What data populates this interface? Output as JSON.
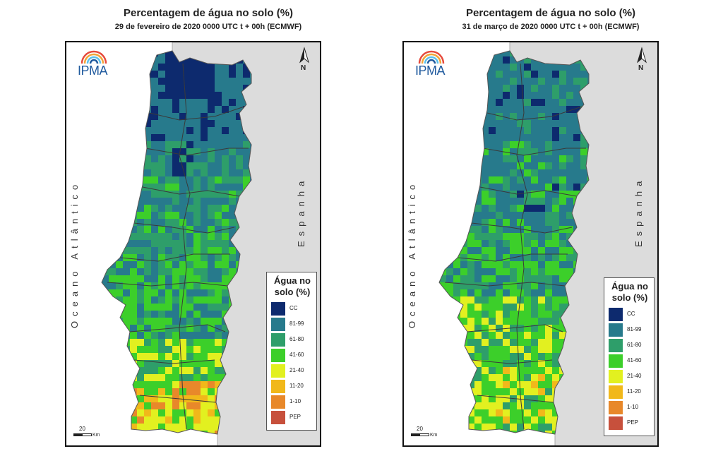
{
  "panels": [
    {
      "title": "Percentagem de água no solo (%)",
      "subtitle": "29 de fevereiro de 2020 0000 UTC t + 00h (ECMWF)",
      "logo_text": "IPMA",
      "north_label": "N",
      "ocean_label": "Oceano Atlântico",
      "spain_label": "Espanha",
      "legend_title": "Água no solo (%)",
      "scale_value": "20",
      "scale_unit": "Km"
    },
    {
      "title": "Percentagem de água no solo (%)",
      "subtitle": "31 de março de 2020 0000 UTC t + 00h (ECMWF)",
      "logo_text": "IPMA",
      "north_label": "N",
      "ocean_label": "Oceano Atlântico",
      "spain_label": "Espanha",
      "legend_title": "Água no solo (%)",
      "scale_value": "20",
      "scale_unit": "Km"
    }
  ],
  "legend": [
    {
      "label": "CC",
      "color": "#0d2a6e"
    },
    {
      "label": "81-99",
      "color": "#277a8c"
    },
    {
      "label": "61-80",
      "color": "#2e9e6a"
    },
    {
      "label": "41-60",
      "color": "#3ccf2a"
    },
    {
      "label": "21-40",
      "color": "#e2f020"
    },
    {
      "label": "11-20",
      "color": "#f1b81a"
    },
    {
      "label": "1-10",
      "color": "#e8882a"
    },
    {
      "label": "PEP",
      "color": "#c7503c"
    }
  ],
  "colors": {
    "land_outside": "#dcdcdc",
    "sea": "#ffffff",
    "district_border": "#3a3a3a"
  }
}
